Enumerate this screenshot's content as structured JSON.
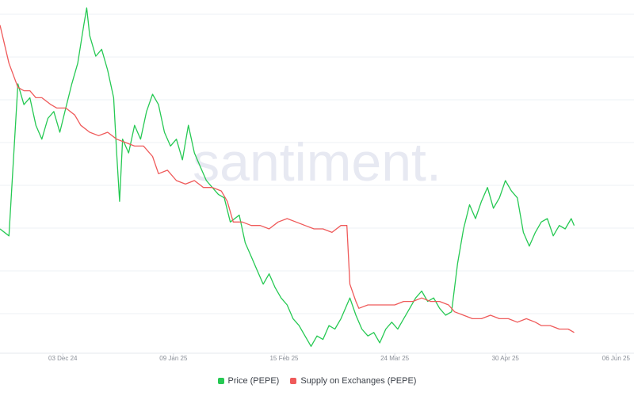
{
  "chart_data": {
    "type": "line",
    "watermark": "santiment.",
    "x_tick_labels": [
      "03 Dec 24",
      "09 Jan 25",
      "15 Feb 25",
      "24 Mar 25",
      "30 Apr 25",
      "06 Jun 25"
    ],
    "x_range": [
      "2024-11-12",
      "2025-06-12"
    ],
    "grid": "horizontal",
    "legend_position": "bottom-center",
    "series": [
      {
        "name": "Price (PEPE)",
        "color": "#26c953",
        "relative_level_0_to_1": [
          [
            0,
            0.36
          ],
          [
            3,
            0.34
          ],
          [
            6,
            0.78
          ],
          [
            8,
            0.72
          ],
          [
            10,
            0.74
          ],
          [
            12,
            0.66
          ],
          [
            14,
            0.62
          ],
          [
            16,
            0.68
          ],
          [
            18,
            0.7
          ],
          [
            20,
            0.64
          ],
          [
            22,
            0.71
          ],
          [
            24,
            0.78
          ],
          [
            26,
            0.84
          ],
          [
            28,
            0.95
          ],
          [
            29,
            1.0
          ],
          [
            30,
            0.92
          ],
          [
            32,
            0.86
          ],
          [
            34,
            0.88
          ],
          [
            36,
            0.82
          ],
          [
            38,
            0.74
          ],
          [
            39,
            0.58
          ],
          [
            40,
            0.44
          ],
          [
            41,
            0.62
          ],
          [
            43,
            0.58
          ],
          [
            45,
            0.66
          ],
          [
            47,
            0.62
          ],
          [
            49,
            0.7
          ],
          [
            51,
            0.75
          ],
          [
            53,
            0.72
          ],
          [
            55,
            0.64
          ],
          [
            57,
            0.6
          ],
          [
            59,
            0.62
          ],
          [
            61,
            0.56
          ],
          [
            63,
            0.66
          ],
          [
            65,
            0.58
          ],
          [
            67,
            0.54
          ],
          [
            69,
            0.5
          ],
          [
            71,
            0.48
          ],
          [
            73,
            0.46
          ],
          [
            75,
            0.45
          ],
          [
            77,
            0.38
          ],
          [
            80,
            0.4
          ],
          [
            82,
            0.32
          ],
          [
            84,
            0.28
          ],
          [
            86,
            0.24
          ],
          [
            88,
            0.2
          ],
          [
            90,
            0.23
          ],
          [
            92,
            0.19
          ],
          [
            94,
            0.16
          ],
          [
            96,
            0.14
          ],
          [
            98,
            0.1
          ],
          [
            100,
            0.08
          ],
          [
            102,
            0.05
          ],
          [
            104,
            0.02
          ],
          [
            106,
            0.05
          ],
          [
            108,
            0.04
          ],
          [
            110,
            0.08
          ],
          [
            112,
            0.07
          ],
          [
            114,
            0.1
          ],
          [
            116,
            0.14
          ],
          [
            117,
            0.16
          ],
          [
            119,
            0.11
          ],
          [
            121,
            0.07
          ],
          [
            123,
            0.05
          ],
          [
            125,
            0.06
          ],
          [
            127,
            0.03
          ],
          [
            129,
            0.07
          ],
          [
            131,
            0.09
          ],
          [
            133,
            0.07
          ],
          [
            135,
            0.1
          ],
          [
            137,
            0.13
          ],
          [
            139,
            0.16
          ],
          [
            141,
            0.18
          ],
          [
            143,
            0.15
          ],
          [
            145,
            0.16
          ],
          [
            147,
            0.13
          ],
          [
            149,
            0.11
          ],
          [
            151,
            0.12
          ],
          [
            153,
            0.26
          ],
          [
            155,
            0.36
          ],
          [
            157,
            0.43
          ],
          [
            159,
            0.39
          ],
          [
            161,
            0.44
          ],
          [
            163,
            0.48
          ],
          [
            165,
            0.42
          ],
          [
            167,
            0.45
          ],
          [
            169,
            0.5
          ],
          [
            171,
            0.47
          ],
          [
            173,
            0.45
          ],
          [
            175,
            0.35
          ],
          [
            177,
            0.31
          ],
          [
            179,
            0.35
          ],
          [
            181,
            0.38
          ],
          [
            183,
            0.39
          ],
          [
            185,
            0.34
          ],
          [
            187,
            0.37
          ],
          [
            189,
            0.36
          ],
          [
            191,
            0.39
          ],
          [
            192,
            0.37
          ]
        ]
      },
      {
        "name": "Supply on Exchanges (PEPE)",
        "color": "#ef5a5a",
        "relative_level_0_to_1": [
          [
            0,
            0.95
          ],
          [
            3,
            0.84
          ],
          [
            6,
            0.77
          ],
          [
            8,
            0.76
          ],
          [
            10,
            0.76
          ],
          [
            12,
            0.74
          ],
          [
            14,
            0.74
          ],
          [
            17,
            0.72
          ],
          [
            19,
            0.71
          ],
          [
            22,
            0.71
          ],
          [
            25,
            0.69
          ],
          [
            27,
            0.66
          ],
          [
            30,
            0.64
          ],
          [
            33,
            0.63
          ],
          [
            36,
            0.64
          ],
          [
            39,
            0.62
          ],
          [
            42,
            0.61
          ],
          [
            45,
            0.6
          ],
          [
            48,
            0.6
          ],
          [
            51,
            0.57
          ],
          [
            53,
            0.52
          ],
          [
            56,
            0.53
          ],
          [
            59,
            0.5
          ],
          [
            62,
            0.49
          ],
          [
            65,
            0.5
          ],
          [
            68,
            0.48
          ],
          [
            71,
            0.48
          ],
          [
            74,
            0.47
          ],
          [
            76,
            0.44
          ],
          [
            78,
            0.38
          ],
          [
            81,
            0.38
          ],
          [
            84,
            0.37
          ],
          [
            87,
            0.37
          ],
          [
            90,
            0.36
          ],
          [
            93,
            0.38
          ],
          [
            96,
            0.39
          ],
          [
            99,
            0.38
          ],
          [
            102,
            0.37
          ],
          [
            105,
            0.36
          ],
          [
            108,
            0.36
          ],
          [
            111,
            0.35
          ],
          [
            114,
            0.37
          ],
          [
            116,
            0.37
          ],
          [
            117,
            0.2
          ],
          [
            119,
            0.15
          ],
          [
            120,
            0.13
          ],
          [
            123,
            0.14
          ],
          [
            126,
            0.14
          ],
          [
            129,
            0.14
          ],
          [
            132,
            0.14
          ],
          [
            135,
            0.15
          ],
          [
            138,
            0.15
          ],
          [
            141,
            0.16
          ],
          [
            144,
            0.15
          ],
          [
            147,
            0.15
          ],
          [
            150,
            0.14
          ],
          [
            152,
            0.12
          ],
          [
            155,
            0.11
          ],
          [
            158,
            0.1
          ],
          [
            161,
            0.1
          ],
          [
            164,
            0.11
          ],
          [
            167,
            0.1
          ],
          [
            170,
            0.1
          ],
          [
            173,
            0.09
          ],
          [
            176,
            0.1
          ],
          [
            179,
            0.09
          ],
          [
            181,
            0.08
          ],
          [
            184,
            0.08
          ],
          [
            187,
            0.07
          ],
          [
            190,
            0.07
          ],
          [
            192,
            0.06
          ]
        ]
      }
    ]
  }
}
